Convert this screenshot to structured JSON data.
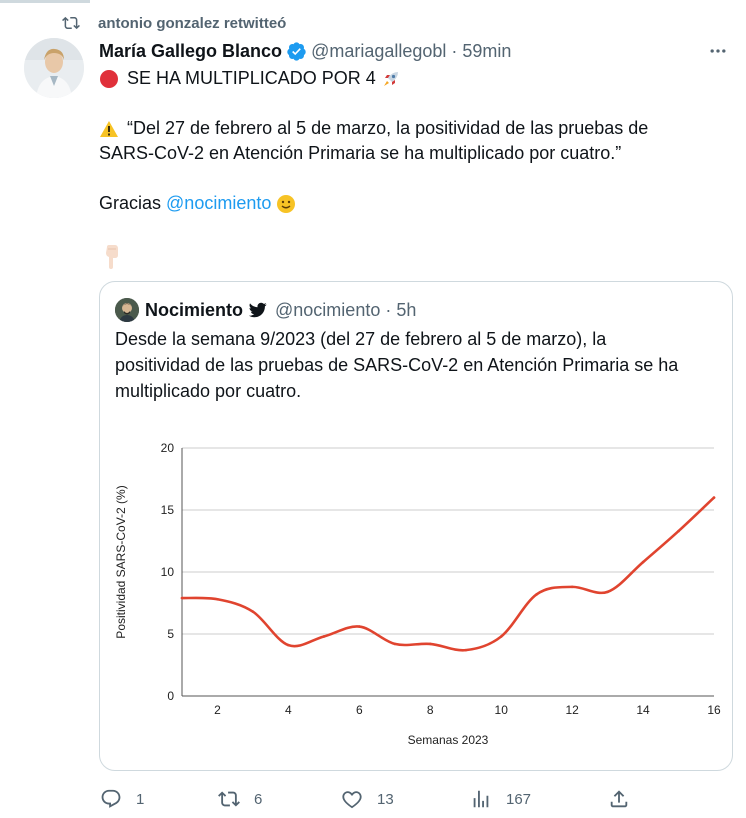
{
  "retweet_banner": {
    "text": "antonio gonzalez retwitteó"
  },
  "tweet": {
    "author_name": "María Gallego Blanco",
    "handle": "@mariagallegobl",
    "separator": "·",
    "time": "59min",
    "line1": "SE HA MULTIPLICADO POR 4",
    "line2": "“Del 27 de febrero al 5 de marzo, la positividad de las pruebas de",
    "line3": "SARS-CoV-2 en Atención Primaria se ha multiplicado por cuatro.”",
    "thanks_text": "Gracias",
    "mention": "@nocimiento"
  },
  "quote": {
    "author_name": "Nocimiento",
    "handle": "@nocimiento",
    "separator": "·",
    "time": "5h",
    "text_line1": "Desde la semana 9/2023 (del 27 de febrero al 5 de marzo), la",
    "text_line2": "positividad de las pruebas de SARS-CoV-2 en Atención Primaria se ha",
    "text_line3": "multiplicado por cuatro."
  },
  "chart_data": {
    "type": "line",
    "title": "",
    "xlabel": "Semanas 2023",
    "ylabel": "Positividad SARS-CoV-2 (%)",
    "xlim": [
      1,
      16
    ],
    "ylim": [
      0,
      20
    ],
    "x_ticks": [
      2,
      4,
      6,
      8,
      10,
      12,
      14,
      16
    ],
    "y_ticks": [
      0,
      5,
      10,
      15,
      20
    ],
    "grid": "horizontal",
    "color": "#e0442f",
    "x": [
      1,
      2,
      3,
      4,
      5,
      6,
      7,
      8,
      9,
      10,
      11,
      12,
      13,
      14,
      15,
      16
    ],
    "y": [
      7.9,
      7.8,
      6.8,
      4.1,
      4.8,
      5.6,
      4.2,
      4.2,
      3.7,
      4.8,
      8.2,
      8.8,
      8.4,
      10.8,
      13.3,
      16.0
    ]
  },
  "actions": {
    "replies": "1",
    "retweets": "6",
    "likes": "13",
    "views": "167"
  },
  "colors": {
    "accent": "#1d9bf0",
    "muted": "#536471",
    "verified": "#1d9bf0",
    "line": "#e0442f"
  }
}
